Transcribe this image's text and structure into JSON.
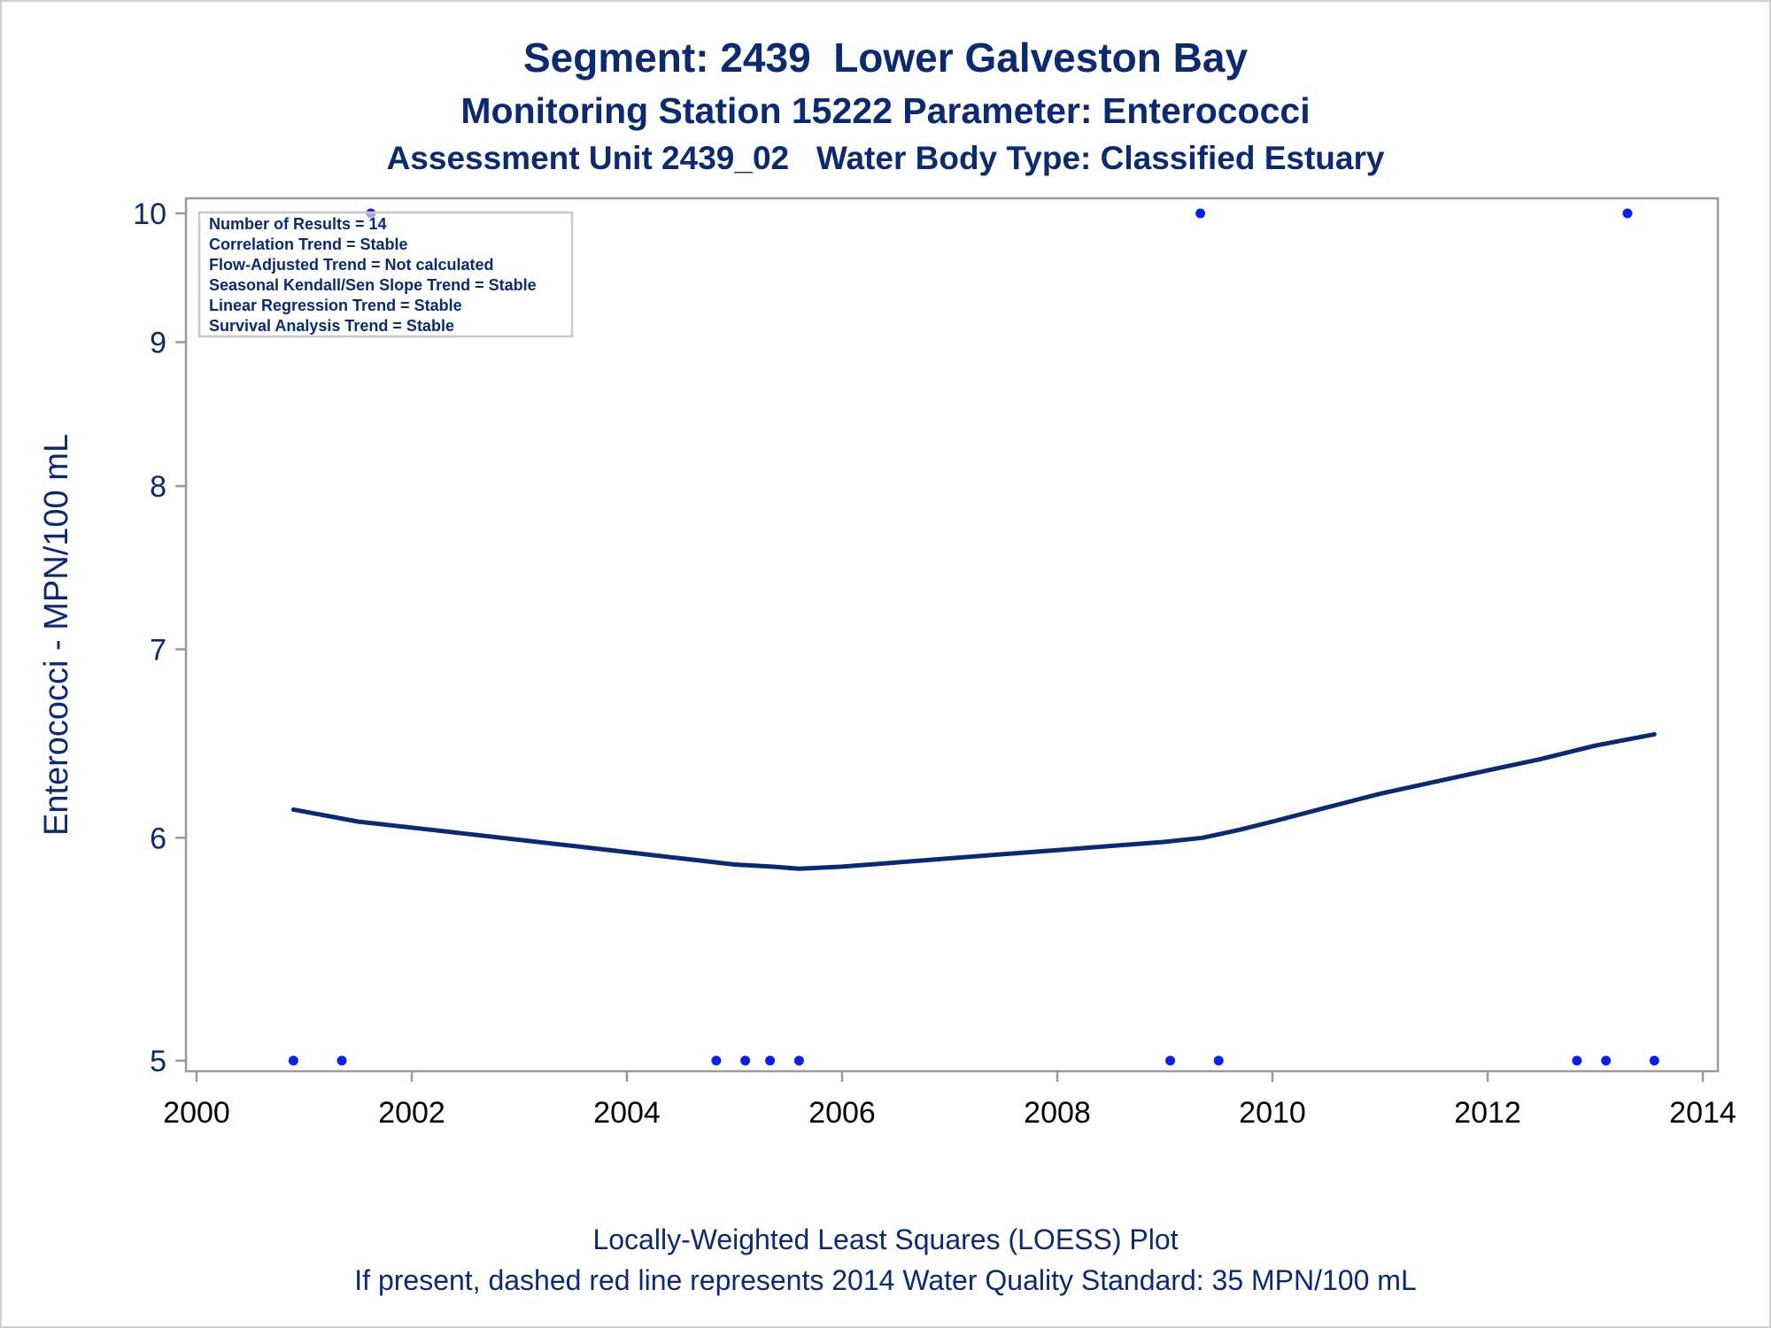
{
  "title": "Segment: 2439  Lower Galveston Bay",
  "subtitle": "Monitoring Station 15222 Parameter: Enterococci",
  "subtitle2": "Assessment Unit 2439_02   Water Body Type: Classified Estuary",
  "footer": {
    "line1": "Locally-Weighted Least Squares (LOESS) Plot",
    "line2": "If present, dashed red line represents 2014 Water Quality Standard: 35 MPN/100 mL"
  },
  "stats_box": [
    "Number of Results = 14",
    "Correlation Trend = Stable",
    "Flow-Adjusted Trend = Not calculated",
    "Seasonal Kendall/Sen Slope Trend = Stable",
    "Linear Regression Trend = Stable",
    "Survival Analysis Trend = Stable"
  ],
  "colors": {
    "points": "#0a1ef0",
    "loess": "#0b2a6f",
    "text": "#0b2a6f",
    "axis": "#9a9a9a"
  },
  "chart_data": {
    "type": "scatter",
    "ylabel": "Enterococci - MPN/100 mL",
    "xlabel": "",
    "xlim": [
      2000,
      2014
    ],
    "ylim": [
      5,
      10
    ],
    "y_scale": "log",
    "x_ticks": [
      2000,
      2002,
      2004,
      2006,
      2008,
      2010,
      2012,
      2014
    ],
    "y_ticks": [
      5,
      6,
      7,
      8,
      9,
      10
    ],
    "grid": false,
    "series": [
      {
        "kind": "points",
        "points": [
          {
            "x": 2000.9,
            "y": 5
          },
          {
            "x": 2001.35,
            "y": 5
          },
          {
            "x": 2001.62,
            "y": 10
          },
          {
            "x": 2004.83,
            "y": 5
          },
          {
            "x": 2005.1,
            "y": 5
          },
          {
            "x": 2005.33,
            "y": 5
          },
          {
            "x": 2005.6,
            "y": 5
          },
          {
            "x": 2009.05,
            "y": 5
          },
          {
            "x": 2009.33,
            "y": 10
          },
          {
            "x": 2009.5,
            "y": 5
          },
          {
            "x": 2012.83,
            "y": 5
          },
          {
            "x": 2013.1,
            "y": 5
          },
          {
            "x": 2013.3,
            "y": 10
          },
          {
            "x": 2013.55,
            "y": 5
          }
        ]
      },
      {
        "kind": "loess",
        "points": [
          {
            "x": 2000.9,
            "y": 6.14
          },
          {
            "x": 2001.5,
            "y": 6.08
          },
          {
            "x": 2002.0,
            "y": 6.05
          },
          {
            "x": 2002.5,
            "y": 6.02
          },
          {
            "x": 2003.0,
            "y": 5.99
          },
          {
            "x": 2003.5,
            "y": 5.96
          },
          {
            "x": 2004.0,
            "y": 5.93
          },
          {
            "x": 2004.5,
            "y": 5.9
          },
          {
            "x": 2005.0,
            "y": 5.87
          },
          {
            "x": 2005.35,
            "y": 5.86
          },
          {
            "x": 2005.6,
            "y": 5.85
          },
          {
            "x": 2006.0,
            "y": 5.86
          },
          {
            "x": 2006.5,
            "y": 5.88
          },
          {
            "x": 2007.0,
            "y": 5.9
          },
          {
            "x": 2007.5,
            "y": 5.92
          },
          {
            "x": 2008.0,
            "y": 5.94
          },
          {
            "x": 2008.5,
            "y": 5.96
          },
          {
            "x": 2009.0,
            "y": 5.98
          },
          {
            "x": 2009.35,
            "y": 6.0
          },
          {
            "x": 2009.7,
            "y": 6.04
          },
          {
            "x": 2010.0,
            "y": 6.08
          },
          {
            "x": 2010.5,
            "y": 6.15
          },
          {
            "x": 2011.0,
            "y": 6.22
          },
          {
            "x": 2011.5,
            "y": 6.28
          },
          {
            "x": 2012.0,
            "y": 6.34
          },
          {
            "x": 2012.5,
            "y": 6.4
          },
          {
            "x": 2013.0,
            "y": 6.47
          },
          {
            "x": 2013.55,
            "y": 6.53
          }
        ]
      }
    ]
  }
}
